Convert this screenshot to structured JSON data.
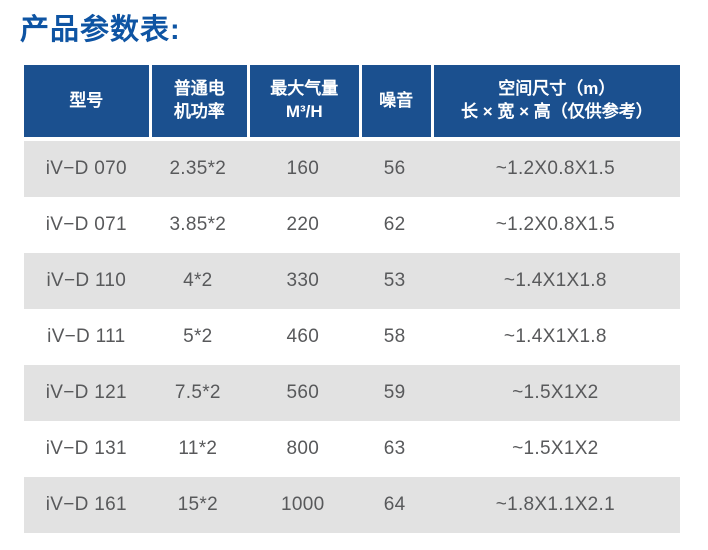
{
  "title": "产品参数表:",
  "colors": {
    "header_bg": "#1b508f",
    "row_alt_bg": "#e2e2e2",
    "title_color": "#0e54a3",
    "header_text": "#ffffff",
    "body_text": "#58595b"
  },
  "table": {
    "headers": [
      {
        "label": "型号"
      },
      {
        "label": "普通电\n机功率"
      },
      {
        "label": "最大气量\nM³/H"
      },
      {
        "label": "噪音"
      },
      {
        "label": "空间尺寸（m）\n长 × 宽 × 高（仅供参考）"
      }
    ],
    "rows": [
      {
        "model": "iV−D 070",
        "power": "2.35*2",
        "airflow": "160",
        "noise": "56",
        "dimensions": "~1.2X0.8X1.5"
      },
      {
        "model": "iV−D 071",
        "power": "3.85*2",
        "airflow": "220",
        "noise": "62",
        "dimensions": "~1.2X0.8X1.5"
      },
      {
        "model": "iV−D 110",
        "power": "4*2",
        "airflow": "330",
        "noise": "53",
        "dimensions": "~1.4X1X1.8"
      },
      {
        "model": "iV−D 111",
        "power": "5*2",
        "airflow": "460",
        "noise": "58",
        "dimensions": "~1.4X1X1.8"
      },
      {
        "model": "iV−D 121",
        "power": "7.5*2",
        "airflow": "560",
        "noise": "59",
        "dimensions": "~1.5X1X2"
      },
      {
        "model": "iV−D 131",
        "power": "11*2",
        "airflow": "800",
        "noise": "63",
        "dimensions": "~1.5X1X2"
      },
      {
        "model": "iV−D 161",
        "power": "15*2",
        "airflow": "1000",
        "noise": "64",
        "dimensions": "~1.8X1.1X2.1"
      }
    ]
  },
  "chart_data": {
    "type": "table",
    "title": "产品参数表",
    "columns": [
      "型号",
      "普通电机功率",
      "最大气量 M³/H",
      "噪音",
      "空间尺寸（m）长 × 宽 × 高（仅供参考）"
    ],
    "rows": [
      [
        "iV−D 070",
        "2.35*2",
        160,
        56,
        "~1.2X0.8X1.5"
      ],
      [
        "iV−D 071",
        "3.85*2",
        220,
        62,
        "~1.2X0.8X1.5"
      ],
      [
        "iV−D 110",
        "4*2",
        330,
        53,
        "~1.4X1X1.8"
      ],
      [
        "iV−D 111",
        "5*2",
        460,
        58,
        "~1.4X1X1.8"
      ],
      [
        "iV−D 121",
        "7.5*2",
        560,
        59,
        "~1.5X1X2"
      ],
      [
        "iV−D 131",
        "11*2",
        800,
        63,
        "~1.5X1X2"
      ],
      [
        "iV−D 161",
        "15*2",
        1000,
        64,
        "~1.8X1.1X2.1"
      ]
    ]
  }
}
